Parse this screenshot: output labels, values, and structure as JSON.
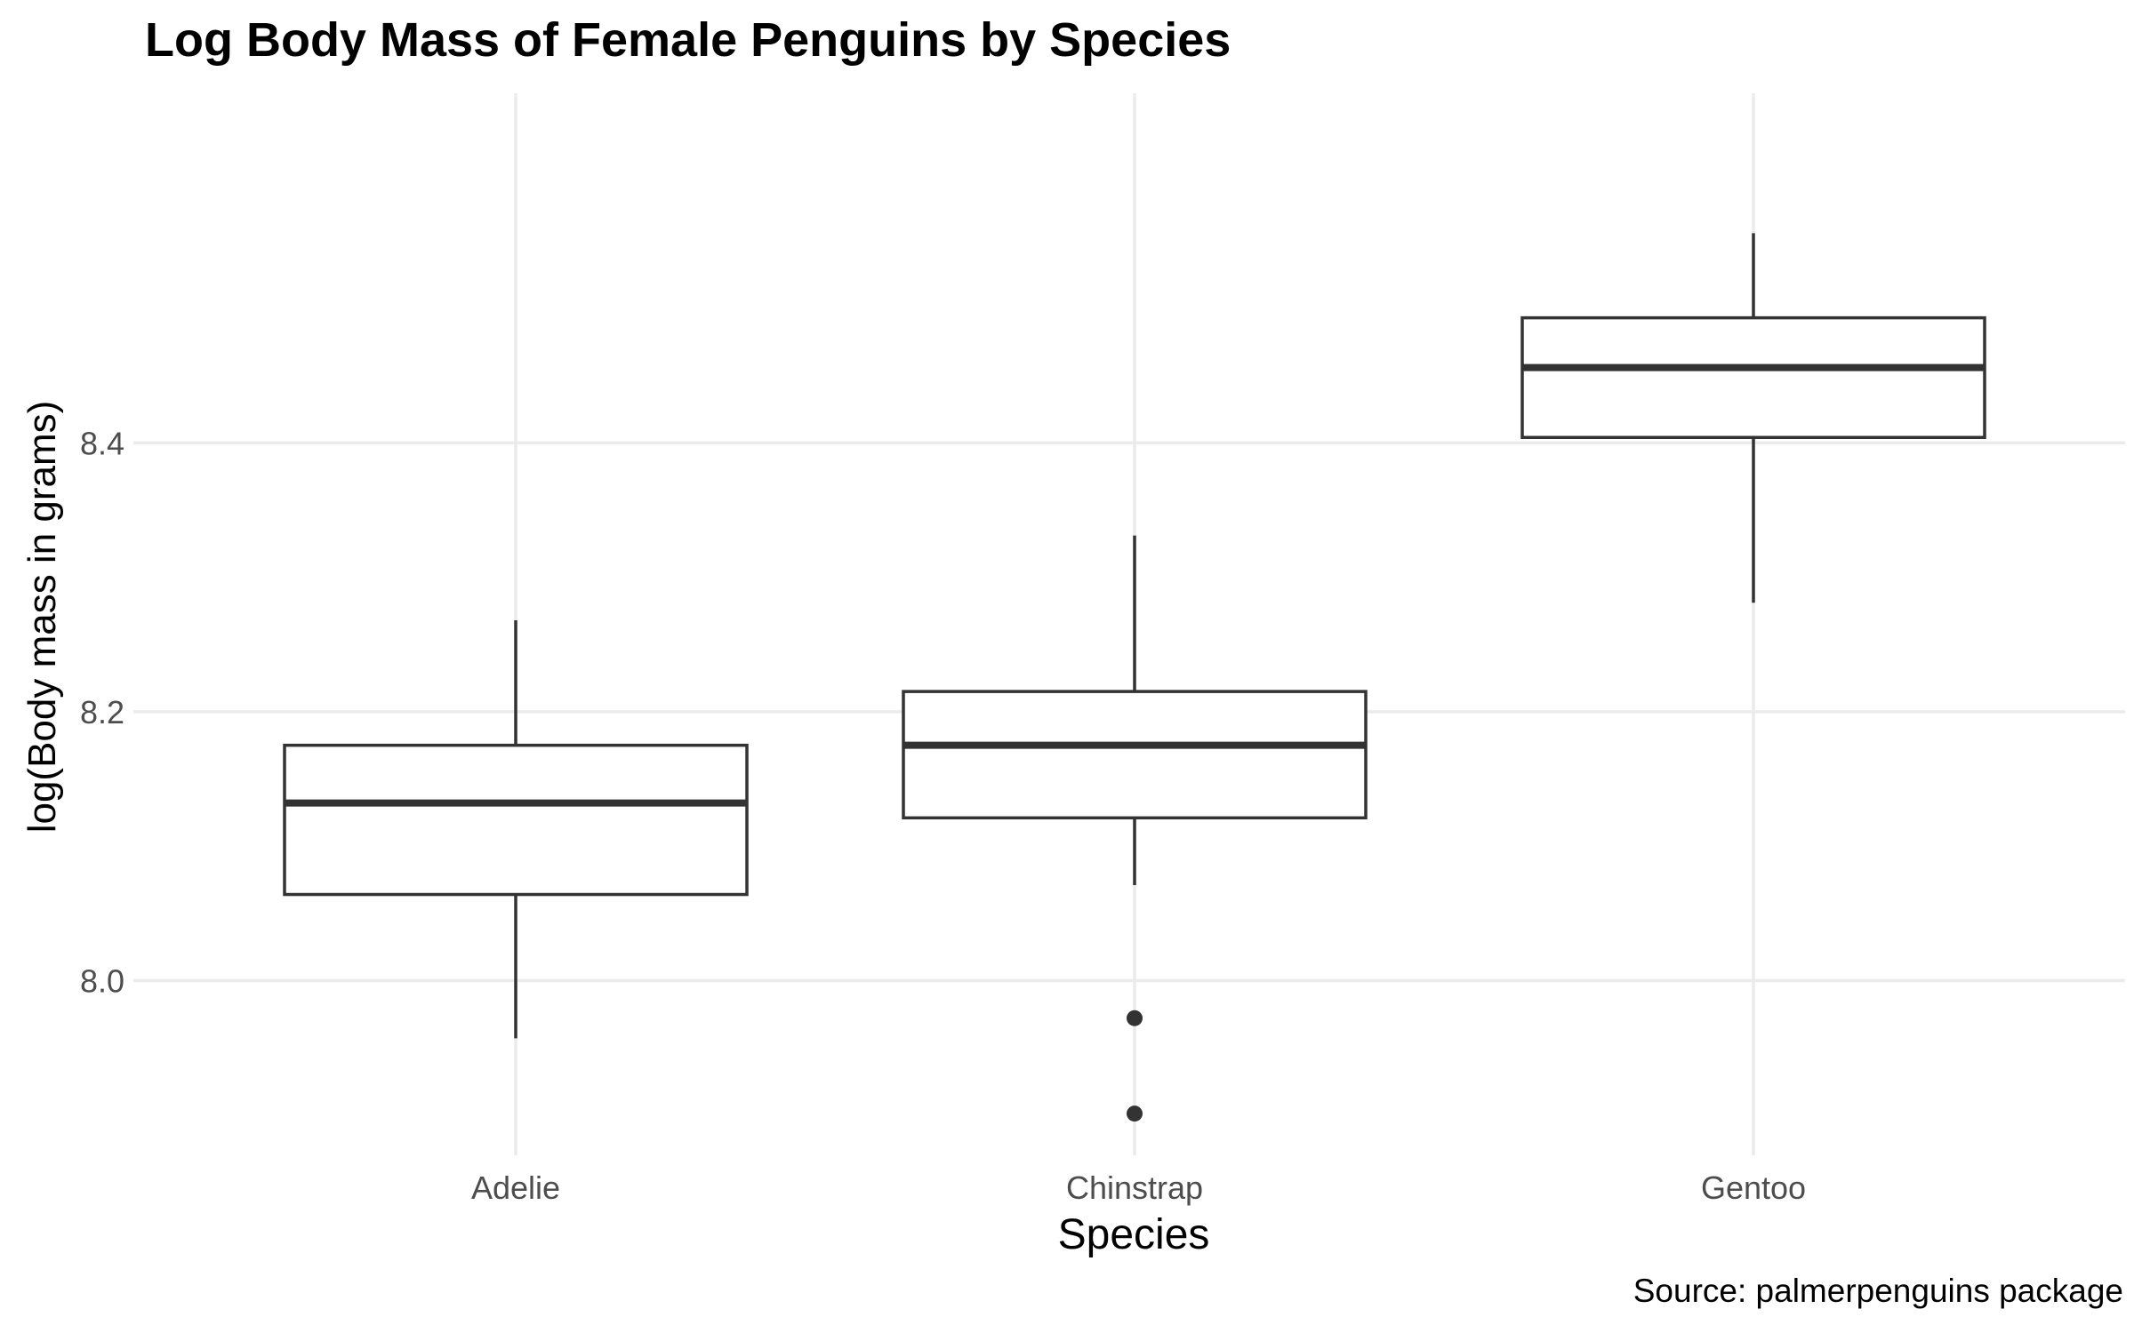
{
  "chart_data": {
    "type": "boxplot",
    "title": "Log Body Mass of Female Penguins by Species",
    "xlabel": "Species",
    "ylabel": "log(Body mass in grams)",
    "caption": "Source: palmerpenguins package",
    "categories": [
      "Adelie",
      "Chinstrap",
      "Gentoo"
    ],
    "ylim": [
      7.87,
      8.66
    ],
    "yticks": [
      8.0,
      8.2,
      8.4
    ],
    "ytick_labels": [
      "8.0",
      "8.2",
      "8.4"
    ],
    "grid": true,
    "boxes": [
      {
        "category": "Adelie",
        "whisker_low": 7.957,
        "q1": 8.064,
        "median": 8.132,
        "q3": 8.175,
        "whisker_high": 8.268,
        "outliers": []
      },
      {
        "category": "Chinstrap",
        "whisker_low": 8.071,
        "q1": 8.121,
        "median": 8.175,
        "q3": 8.215,
        "whisker_high": 8.331,
        "outliers": [
          7.972,
          7.901
        ]
      },
      {
        "category": "Gentoo",
        "whisker_low": 8.281,
        "q1": 8.404,
        "median": 8.456,
        "q3": 8.493,
        "whisker_high": 8.556,
        "outliers": []
      }
    ],
    "colors": {
      "box_stroke": "#333333",
      "box_fill": "#ffffff",
      "grid": "#ebebeb",
      "tick_text": "#4d4d4d"
    }
  }
}
